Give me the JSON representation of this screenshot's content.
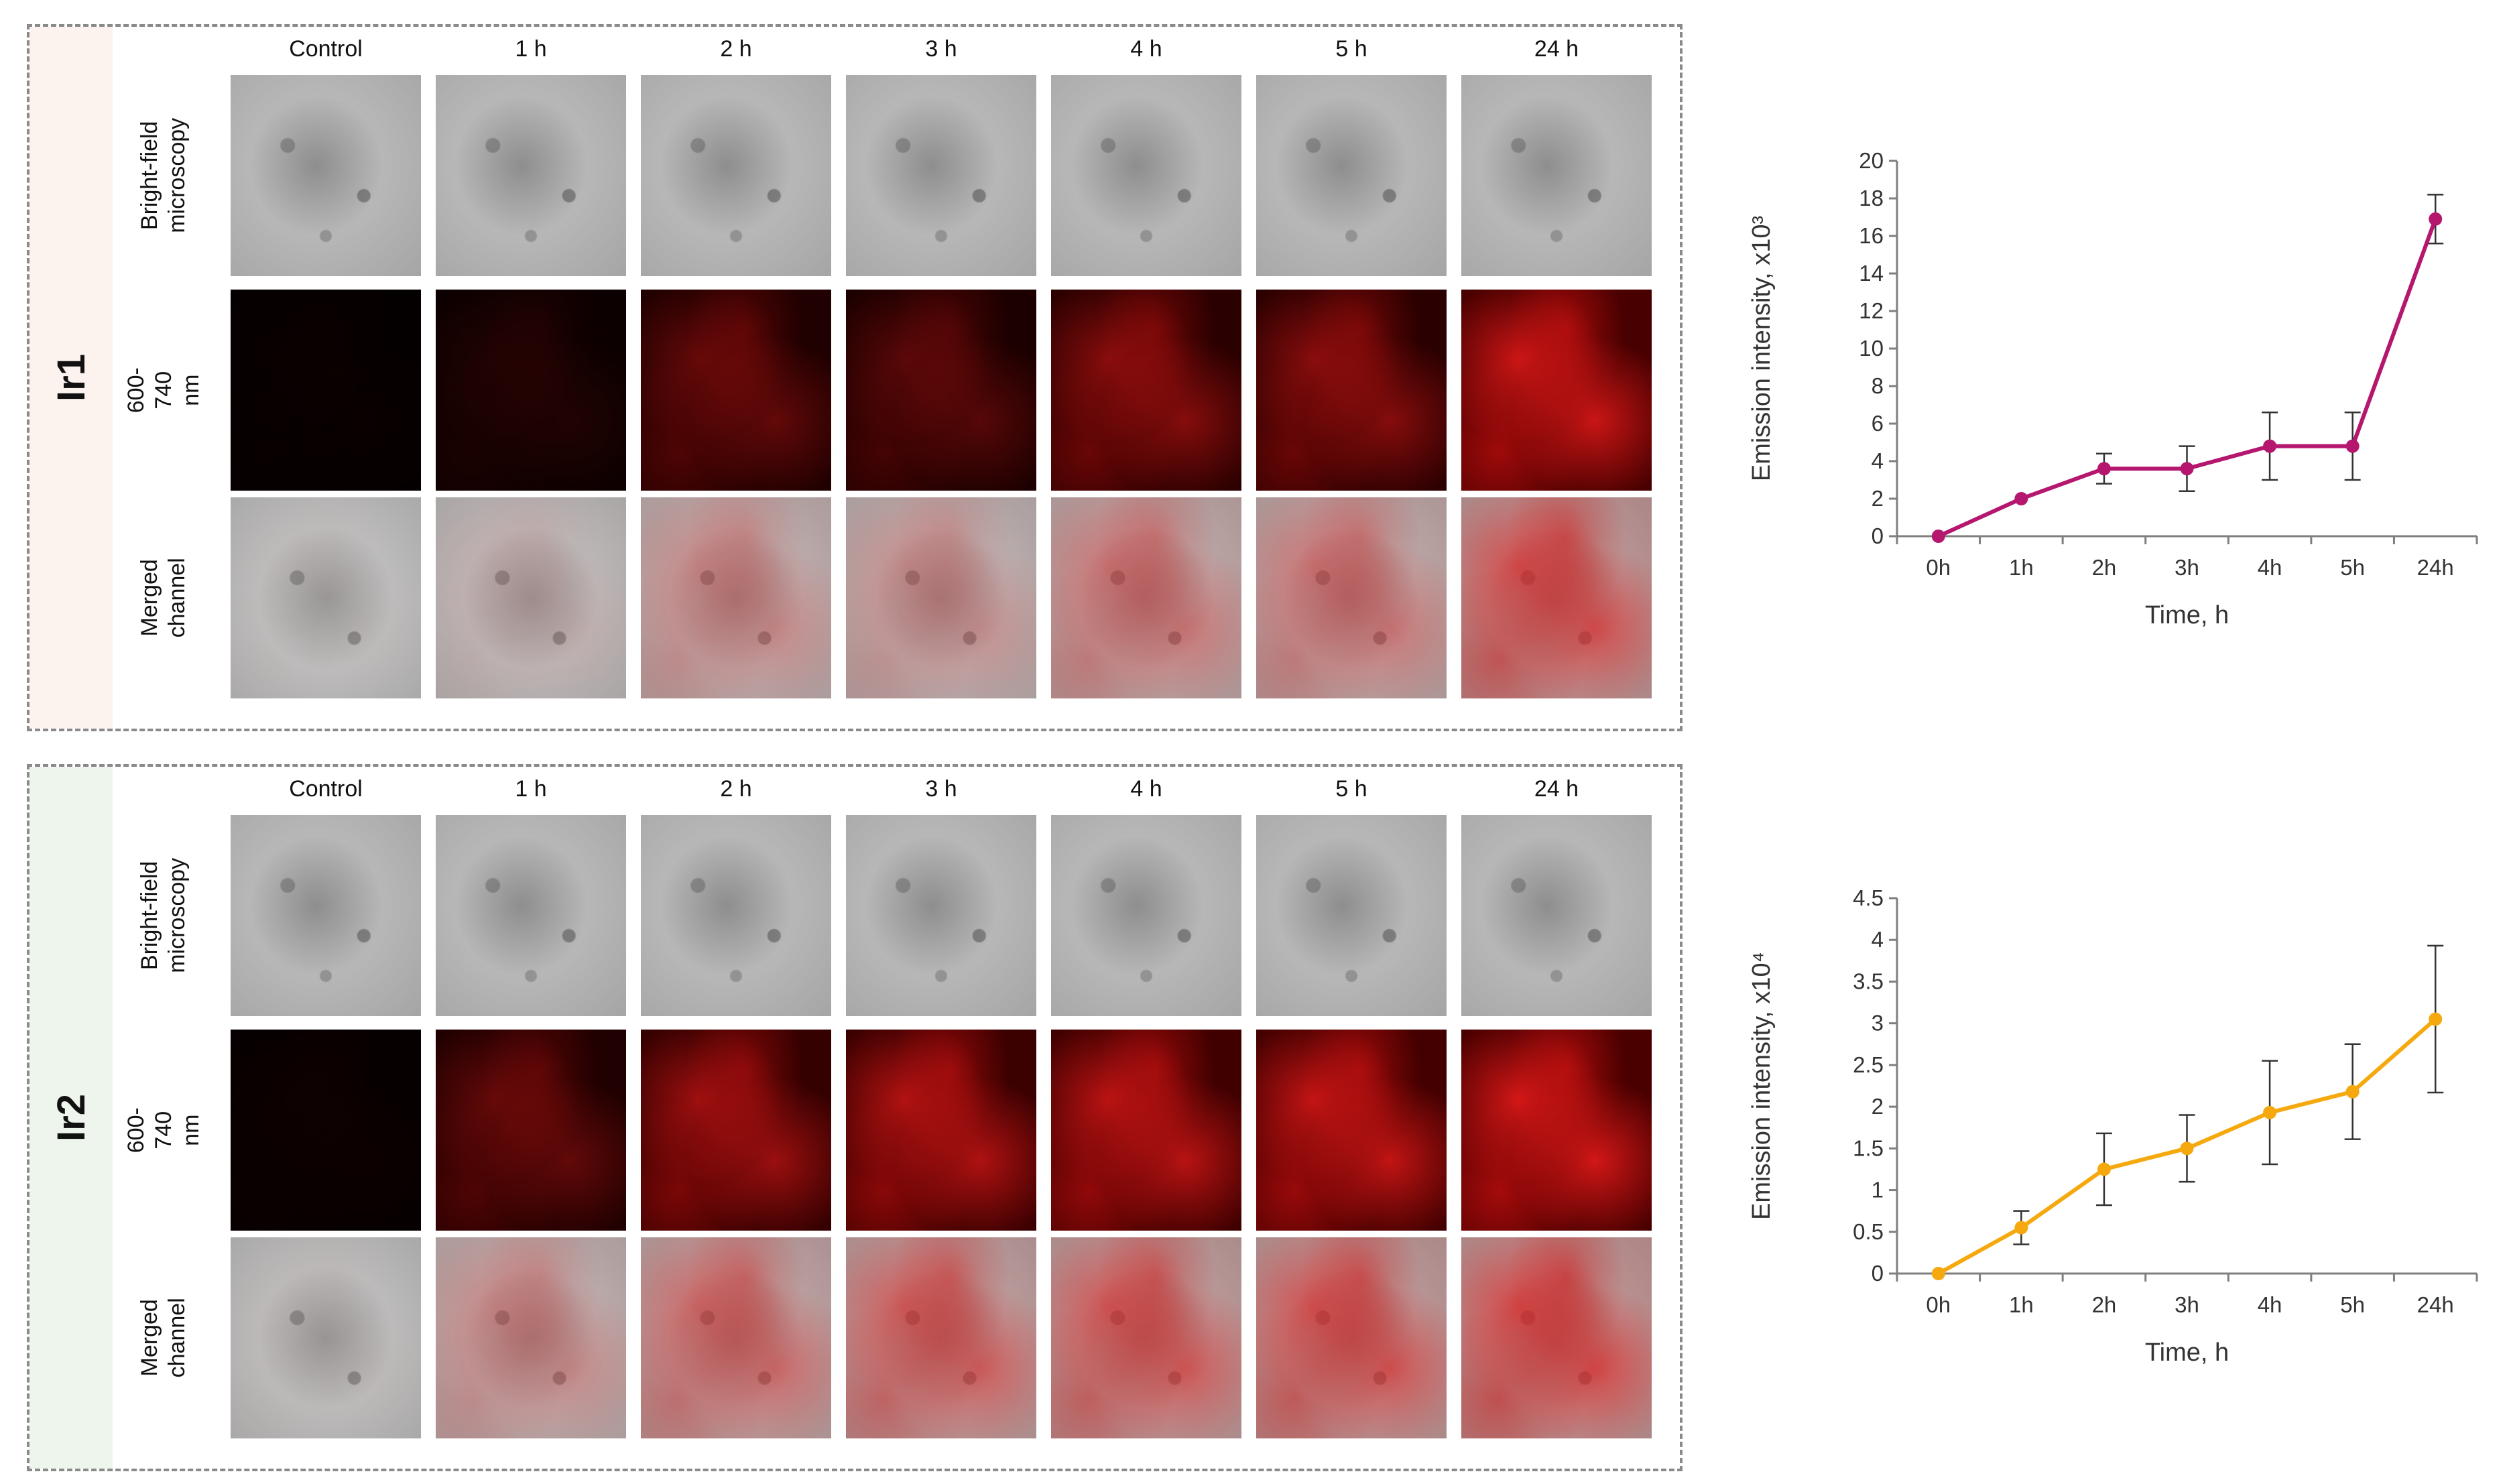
{
  "columns": [
    "Control",
    "1 h",
    "2 h",
    "3 h",
    "4 h",
    "5 h",
    "24 h"
  ],
  "rows": [
    "Bright-field\nmicroscopy",
    "600-740 nm",
    "Merged\nchannel"
  ],
  "panels": [
    {
      "compound": "Ir1",
      "fluor_levels": [
        0.02,
        0.1,
        0.35,
        0.3,
        0.5,
        0.5,
        0.85
      ]
    },
    {
      "compound": "Ir2",
      "fluor_levels": [
        0.03,
        0.35,
        0.6,
        0.7,
        0.75,
        0.8,
        0.9
      ]
    }
  ],
  "colors": {
    "ir1_series": "#b5176f",
    "ir2_series": "#f5a90f",
    "fluor_red": "#e01818",
    "axis": "#7f7f7f"
  },
  "chart_data": [
    {
      "type": "line",
      "title": "",
      "categories": [
        "0h",
        "1h",
        "2h",
        "3h",
        "4h",
        "5h",
        "24h"
      ],
      "series": [
        {
          "name": "",
          "values": [
            0,
            2,
            3.6,
            3.6,
            4.8,
            4.8,
            16.9
          ],
          "error": [
            0,
            0,
            0.8,
            1.2,
            1.8,
            1.8,
            1.3
          ]
        }
      ],
      "xlabel": "Time, h",
      "ylabel": "Emission intensity, x10³",
      "ylim": [
        0,
        20
      ],
      "yticks": [
        0,
        2,
        4,
        6,
        8,
        10,
        12,
        14,
        16,
        18,
        20
      ],
      "grid": false
    },
    {
      "type": "line",
      "title": "",
      "categories": [
        "0h",
        "1h",
        "2h",
        "3h",
        "4h",
        "5h",
        "24h"
      ],
      "series": [
        {
          "name": "",
          "values": [
            0,
            0.55,
            1.25,
            1.5,
            1.93,
            2.18,
            3.05
          ],
          "error": [
            0,
            0.2,
            0.43,
            0.4,
            0.62,
            0.57,
            0.88
          ]
        }
      ],
      "xlabel": "Time, h",
      "ylabel": "Emission intensity, x10⁴",
      "ylim": [
        0,
        4.5
      ],
      "yticks": [
        "0",
        "0.5",
        "1",
        "1.5",
        "2",
        "2.5",
        "3",
        "3.5",
        "4",
        "4.5"
      ],
      "grid": false
    }
  ]
}
